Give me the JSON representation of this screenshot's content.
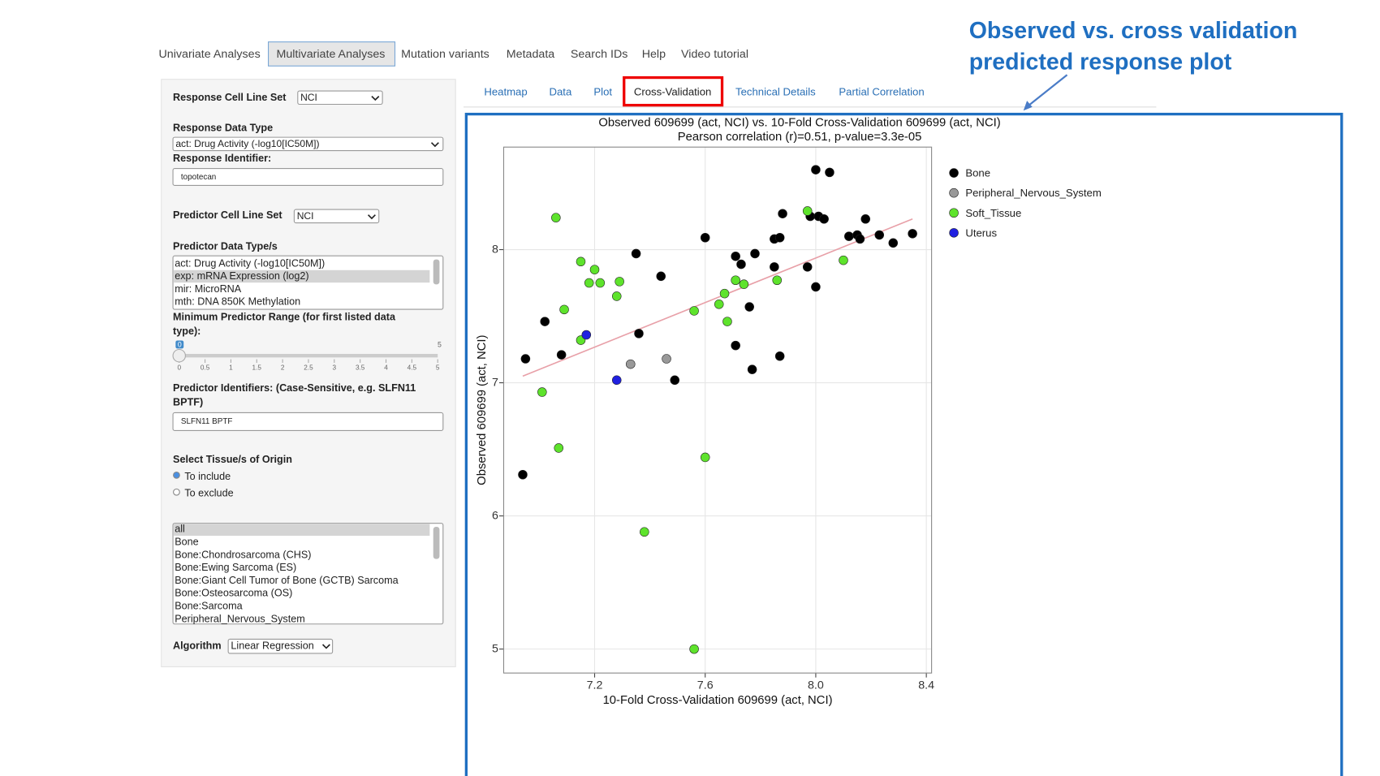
{
  "nav_tabs": [
    "Univariate Analyses",
    "Multivariate Analyses",
    "Mutation variants",
    "Metadata",
    "Search IDs",
    "Help",
    "Video tutorial"
  ],
  "sub_tabs": [
    "Heatmap",
    "Data",
    "Plot",
    "Cross-Validation",
    "Technical Details",
    "Partial Correlation"
  ],
  "annotation": [
    "Observed vs. cross validation",
    "predicted response plot"
  ],
  "form": {
    "response_cell_line_set": {
      "label": "Response Cell Line Set",
      "value": "NCI"
    },
    "response_data_type": {
      "label": "Response Data Type",
      "value": "act: Drug Activity (-log10[IC50M])"
    },
    "response_identifier": {
      "label": "Response Identifier:",
      "value": "topotecan"
    },
    "predictor_cell_line_set": {
      "label": "Predictor Cell Line Set",
      "value": "NCI"
    },
    "predictor_data_types": {
      "label": "Predictor Data Type/s",
      "options": [
        "act: Drug Activity (-log10[IC50M])",
        "exp: mRNA Expression (log2)",
        "mir: MicroRNA",
        "mth: DNA 850K Methylation"
      ]
    },
    "min_range": {
      "label": [
        "Minimum Predictor Range (for first listed data",
        "type):"
      ],
      "value": 0,
      "max": 5,
      "ticks": [
        0,
        0.5,
        1,
        1.5,
        2,
        2.5,
        3,
        3.5,
        4,
        4.5,
        5
      ]
    },
    "predictor_identifiers": {
      "label": [
        "Predictor Identifiers: (Case-Sensitive, e.g. SLFN11",
        "BPTF)"
      ],
      "value": "SLFN11 BPTF"
    },
    "tissue_origin": {
      "label": "Select Tissue/s of Origin",
      "options": [
        "To include",
        "To exclude"
      ]
    },
    "tissue_list": [
      "all",
      "Bone",
      "Bone:Chondrosarcoma (CHS)",
      "Bone:Ewing Sarcoma (ES)",
      "Bone:Giant Cell Tumor of Bone (GCTB) Sarcoma",
      "Bone:Osteosarcoma (OS)",
      "Bone:Sarcoma",
      "Peripheral_Nervous_System"
    ],
    "algorithm": {
      "label": "Algorithm",
      "value": "Linear Regression"
    }
  },
  "chart_data": {
    "type": "scatter",
    "title": "Observed 609699 (act, NCI) vs. 10-Fold Cross-Validation 609699 (act, NCI)",
    "subtitle": "Pearson correlation (r)=0.51, p-value=3.3e-05",
    "x_label": "10-Fold Cross-Validation 609699 (act, NCI)",
    "y_label": "Observed 609699 (act, NCI)",
    "xlim": [
      6.871,
      8.419
    ],
    "ylim": [
      4.82,
      8.77
    ],
    "xticks": [
      7.2,
      7.6,
      {
        "value": 8,
        "label": "8.0"
      },
      8.4
    ],
    "yticks": [
      5,
      6,
      7,
      8
    ],
    "grid": true,
    "series": [
      {
        "name": "Bone",
        "color": "#000000",
        "x": [
          8.0,
          8.05,
          7.88,
          7.98,
          8.01,
          8.03,
          8.18,
          7.6,
          7.85,
          7.87,
          8.12,
          8.15,
          8.16,
          8.23,
          8.28,
          8.35,
          7.35,
          7.71,
          7.73,
          7.78,
          7.85,
          7.97,
          7.44,
          8.0,
          7.76,
          7.02,
          7.36,
          7.71,
          7.08,
          6.95,
          7.87,
          7.77,
          7.49,
          6.94
        ],
        "y": [
          8.6,
          8.58,
          8.27,
          8.25,
          8.25,
          8.23,
          8.23,
          8.09,
          8.08,
          8.09,
          8.1,
          8.11,
          8.08,
          8.11,
          8.05,
          8.12,
          7.97,
          7.95,
          7.89,
          7.97,
          7.87,
          7.87,
          7.8,
          7.72,
          7.57,
          7.46,
          7.37,
          7.28,
          7.21,
          7.18,
          7.2,
          7.1,
          7.02,
          6.31
        ]
      },
      {
        "name": "Peripheral_Nervous_System",
        "color": "#999999",
        "x": [
          7.33,
          7.46
        ],
        "y": [
          7.14,
          7.18
        ]
      },
      {
        "name": "Soft_Tissue",
        "color": "#5ee32c",
        "x": [
          7.06,
          7.15,
          7.2,
          7.18,
          7.22,
          7.29,
          7.28,
          7.97,
          8.1,
          7.86,
          7.71,
          7.74,
          7.67,
          7.65,
          7.56,
          7.68,
          7.09,
          7.15,
          7.01,
          7.07,
          7.6,
          7.38,
          7.56
        ],
        "y": [
          8.24,
          7.91,
          7.85,
          7.75,
          7.75,
          7.76,
          7.65,
          8.29,
          7.92,
          7.77,
          7.77,
          7.74,
          7.67,
          7.59,
          7.54,
          7.46,
          7.55,
          7.32,
          6.93,
          6.51,
          6.44,
          5.88,
          5.0
        ]
      },
      {
        "name": "Uterus",
        "color": "#2020e0",
        "x": [
          7.17,
          7.28
        ],
        "y": [
          7.36,
          7.02
        ]
      }
    ],
    "trend_line": {
      "color": "#e8a0a8",
      "x": [
        6.94,
        8.35
      ],
      "y": [
        7.05,
        8.23
      ]
    }
  }
}
